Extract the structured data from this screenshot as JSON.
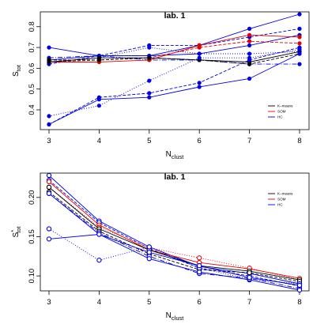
{
  "chart_data": [
    {
      "type": "line",
      "title": "lab. 1",
      "xlabel": "N",
      "xlabel_sub": "clust",
      "ylabel": "S",
      "ylabel_sub": "tot",
      "x": [
        3,
        4,
        5,
        6,
        7,
        8
      ],
      "xlim": [
        3,
        8
      ],
      "ylim": [
        0.32,
        0.86
      ],
      "yticks": [
        0.4,
        0.5,
        0.6,
        0.7,
        0.8
      ],
      "legend_position": "bottom-right",
      "legend": [
        {
          "label": "K–means",
          "color": "#000000"
        },
        {
          "label": "SOM",
          "color": "#e00000"
        },
        {
          "label": "HC",
          "color": "#0000e0"
        }
      ],
      "series": [
        {
          "color": "#0000e0",
          "dash": "",
          "marker": "filled",
          "values": [
            0.64,
            0.66,
            0.66,
            0.67,
            0.71,
            0.76
          ]
        },
        {
          "color": "#0000e0",
          "dash": "4,2",
          "marker": "filled",
          "values": [
            0.62,
            0.66,
            0.71,
            0.71,
            0.75,
            0.79
          ]
        },
        {
          "color": "#0000e0",
          "dash": "1,2",
          "marker": "filled",
          "values": [
            0.63,
            0.65,
            0.7,
            0.67,
            0.67,
            0.68
          ]
        },
        {
          "color": "#0000e0",
          "dash": "6,2,1,2",
          "marker": "filled",
          "values": [
            0.65,
            0.66,
            0.64,
            0.64,
            0.62,
            0.62
          ]
        },
        {
          "color": "#0000e0",
          "dash": "",
          "marker": "filled",
          "values": [
            0.7,
            0.66,
            0.66,
            0.71,
            0.79,
            0.86
          ]
        },
        {
          "color": "#e00000",
          "dash": "",
          "marker": "filled",
          "values": [
            0.63,
            0.63,
            0.64,
            0.71,
            0.76,
            0.75
          ]
        },
        {
          "color": "#e00000",
          "dash": "4,2",
          "marker": "filled",
          "values": [
            0.63,
            0.64,
            0.65,
            0.7,
            0.73,
            0.72
          ]
        },
        {
          "color": "#000000",
          "dash": "",
          "marker": "filled",
          "values": [
            0.63,
            0.65,
            0.65,
            0.64,
            0.63,
            0.68
          ]
        },
        {
          "color": "#000000",
          "dash": "4,2",
          "marker": "filled",
          "values": [
            0.64,
            0.64,
            0.65,
            0.64,
            0.62,
            0.67
          ]
        },
        {
          "color": "#0000e0",
          "dash": "",
          "marker": "filled",
          "values": [
            0.33,
            0.45,
            0.46,
            0.51,
            0.55,
            0.67
          ]
        },
        {
          "color": "#0000e0",
          "dash": "4,2",
          "marker": "filled",
          "values": [
            0.33,
            0.46,
            0.48,
            0.53,
            0.64,
            0.7
          ]
        },
        {
          "color": "#0000e0",
          "dash": "1,2",
          "marker": "filled",
          "values": [
            0.37,
            0.42,
            0.54,
            0.65,
            0.65,
            0.69
          ]
        }
      ]
    },
    {
      "type": "line",
      "title": "lab. 1",
      "xlabel": "N",
      "xlabel_sub": "clust",
      "ylabel": "S",
      "ylabel_sub": "tot",
      "ylabel_prime": "*",
      "x": [
        3,
        4,
        5,
        6,
        7,
        8
      ],
      "xlim": [
        3,
        8
      ],
      "ylim": [
        0.085,
        0.228
      ],
      "yticks": [
        0.1,
        0.15,
        0.2
      ],
      "ytick_labels": [
        "0.10",
        "0.15",
        "0.20"
      ],
      "legend_position": "top-right",
      "legend": [
        {
          "label": "K–means",
          "color": "#000000"
        },
        {
          "label": "SOM",
          "color": "#e00000"
        },
        {
          "label": "HC",
          "color": "#0000e0"
        }
      ],
      "series": [
        {
          "color": "#0000e0",
          "dash": "",
          "marker": "open",
          "values": [
            0.228,
            0.17,
            0.137,
            0.112,
            0.103,
            0.09
          ]
        },
        {
          "color": "#0000e0",
          "dash": "4,2",
          "marker": "open",
          "values": [
            0.222,
            0.168,
            0.135,
            0.11,
            0.1,
            0.087
          ]
        },
        {
          "color": "#e00000",
          "dash": "",
          "marker": "open",
          "values": [
            0.22,
            0.165,
            0.133,
            0.117,
            0.109,
            0.097
          ]
        },
        {
          "color": "#e00000",
          "dash": "1,2",
          "marker": "open",
          "values": [
            0.213,
            0.162,
            0.136,
            0.123,
            0.11,
            0.095
          ]
        },
        {
          "color": "#000000",
          "dash": "",
          "marker": "open",
          "values": [
            0.213,
            0.16,
            0.133,
            0.113,
            0.106,
            0.095
          ]
        },
        {
          "color": "#000000",
          "dash": "4,2",
          "marker": "open",
          "values": [
            0.207,
            0.157,
            0.128,
            0.108,
            0.104,
            0.093
          ]
        },
        {
          "color": "#0000e0",
          "dash": "6,2,1,2",
          "marker": "open",
          "values": [
            0.205,
            0.155,
            0.125,
            0.103,
            0.097,
            0.084
          ]
        },
        {
          "color": "#0000e0",
          "dash": "",
          "marker": "open",
          "values": [
            0.205,
            0.153,
            0.122,
            0.105,
            0.095,
            0.082
          ]
        },
        {
          "color": "#0000e0",
          "dash": "1,2",
          "marker": "open",
          "values": [
            0.16,
            0.12,
            0.137,
            0.11,
            0.096,
            0.09
          ]
        },
        {
          "color": "#0000e0",
          "dash": "",
          "marker": "open",
          "values": [
            0.147,
            0.153,
            0.13,
            0.113,
            0.098,
            0.088
          ]
        }
      ]
    }
  ]
}
